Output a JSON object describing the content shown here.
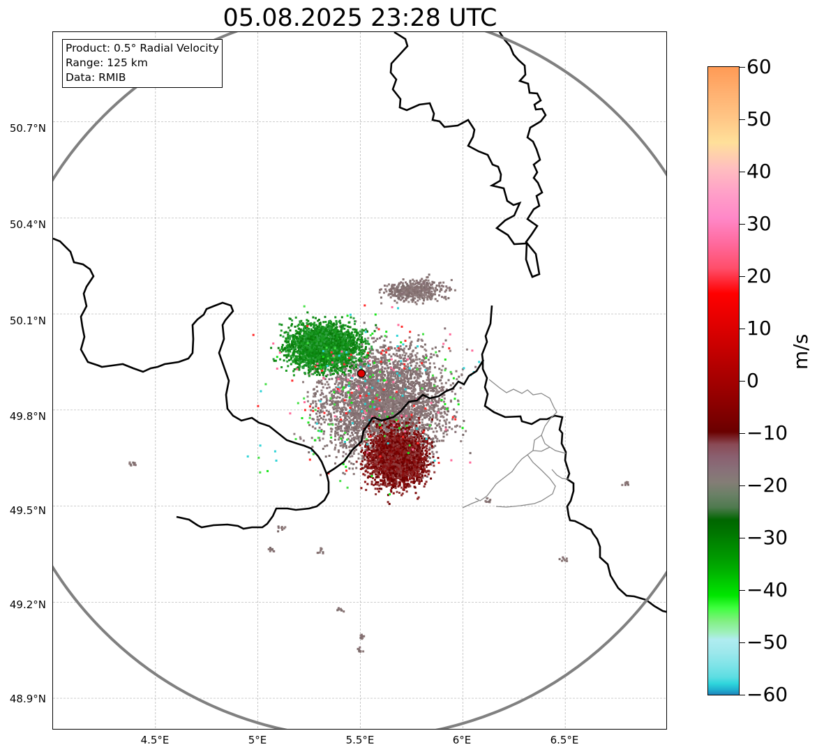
{
  "title": "05.08.2025 23:28 UTC",
  "info": {
    "product": "Product: 0.5° Radial Velocity",
    "range": "Range: 125 km",
    "source": "Data: RMIB"
  },
  "axes": {
    "lat_ticks": [
      "50.7°N",
      "50.4°N",
      "50.1°N",
      "49.8°N",
      "49.5°N",
      "49.2°N",
      "48.9°N"
    ],
    "lon_ticks": [
      "4.5°E",
      "5°E",
      "5.5°E",
      "6°E",
      "6.5°E"
    ]
  },
  "colorbar": {
    "unit": "m/s",
    "ticks": [
      "60",
      "50",
      "40",
      "30",
      "20",
      "10",
      "0",
      "−10",
      "−20",
      "−30",
      "−40",
      "−50",
      "−60"
    ],
    "range": [
      -60,
      60
    ]
  },
  "map": {
    "radar_site": {
      "lon": 5.505,
      "lat": 49.914
    },
    "range_km": 125,
    "extent": {
      "lon": [
        4.0,
        7.0
      ],
      "lat": [
        48.8,
        50.98
      ]
    }
  },
  "colors": {
    "approaching": "#0a7a0a",
    "receding": "#7a0000",
    "near_zero": "#857070",
    "range_ring": "#808080",
    "radar_marker": "#e00000"
  }
}
